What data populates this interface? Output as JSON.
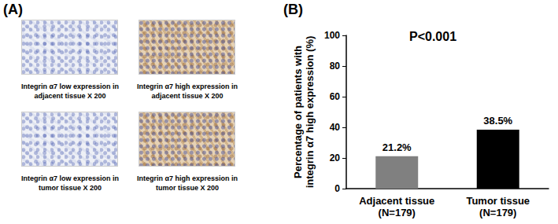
{
  "figure": {
    "panel_labels": [
      "(A)",
      "(B)"
    ],
    "image_captions": [
      "Integrin α7 low expression in adjacent tissue X 200",
      "Integrin α7 high expression in adjacent tissue X 200",
      "Integrin α7 low expression in tumor tissue X 200",
      "Integrin α7 high expression in tumor tissue X 200"
    ]
  },
  "chart_data": {
    "type": "bar",
    "categories": [
      "Adjacent tissue\n(N=179)",
      "Tumor tissue\n(N=179)"
    ],
    "values": [
      21.2,
      38.5
    ],
    "value_labels": [
      "21.2%",
      "38.5%"
    ],
    "colors": [
      "#808080",
      "#000000"
    ],
    "ylabel": "Percentage of patients with\nintegrin α7 high expression (%)",
    "annotations": [
      "P<0.001"
    ],
    "ylim": [
      0,
      100
    ],
    "yticks": [
      0,
      20,
      40,
      60,
      80,
      100
    ],
    "data_labels": true,
    "grid": false
  }
}
